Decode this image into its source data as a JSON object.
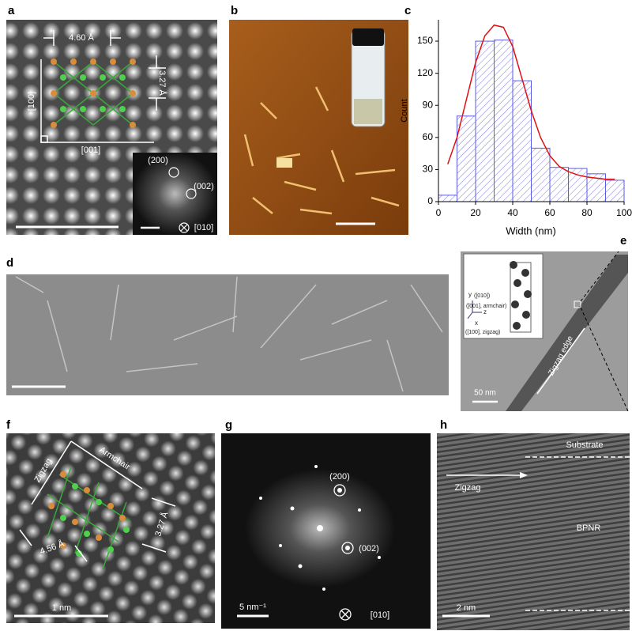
{
  "chart_data": {
    "type": "histogram",
    "bins": [
      0,
      10,
      20,
      30,
      40,
      50,
      60,
      70,
      80,
      90,
      100
    ],
    "values": [
      6,
      80,
      150,
      151,
      113,
      50,
      32,
      31,
      26,
      20
    ],
    "color": "#5a5ae6",
    "fit": {
      "color": "#e01010",
      "x": [
        5,
        10,
        15,
        20,
        25,
        30,
        35,
        40,
        45,
        50,
        55,
        60,
        65,
        70,
        75,
        80,
        85,
        90,
        95
      ],
      "values": [
        35,
        60,
        95,
        130,
        155,
        165,
        163,
        145,
        115,
        85,
        60,
        43,
        33,
        28,
        25,
        23,
        22,
        21,
        21
      ]
    },
    "x_label": "Width (nm)",
    "y_label": "Count",
    "xlim": [
      0,
      100
    ],
    "ylim": [
      0,
      170
    ],
    "xticks": [
      0,
      20,
      40,
      60,
      80,
      100
    ],
    "yticks": [
      0,
      30,
      60,
      90,
      120,
      150
    ]
  },
  "panels": [
    {
      "label": "a",
      "texts": [
        "4.60 Å",
        "3.27 Å",
        "[100]",
        "[001]",
        "(200)",
        "(002)",
        "[010]"
      ]
    },
    {
      "label": "b",
      "texts": []
    },
    {
      "label": "c",
      "texts": []
    },
    {
      "label": "d",
      "texts": []
    },
    {
      "label": "e",
      "texts": [
        "y",
        "([010])",
        "([001], armchair)",
        "z",
        "x",
        "([100], zigzag)",
        "50 nm",
        "Zigzag edge"
      ]
    },
    {
      "label": "f",
      "texts": [
        "Zigzag",
        "Armchair",
        "3.27 Å",
        "4.56 Å",
        "1 nm"
      ]
    },
    {
      "label": "g",
      "texts": [
        "(200)",
        "(002)",
        "5 nm⁻¹",
        "[010]"
      ]
    },
    {
      "label": "h",
      "texts": [
        "Substrate",
        "Zigzag",
        "BPNR",
        "2 nm"
      ]
    }
  ]
}
